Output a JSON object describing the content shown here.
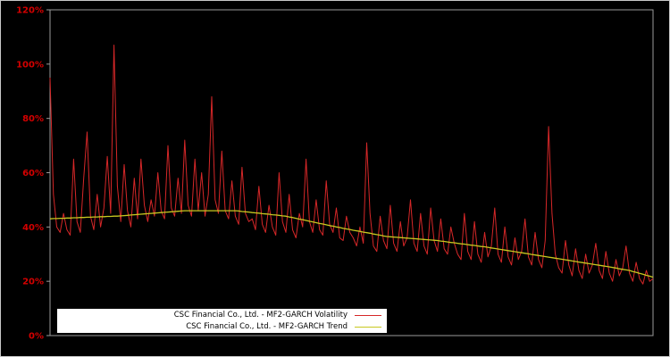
{
  "figure": {
    "background": "#000000",
    "plot_border_color": "#9a9a9a"
  },
  "y_axis": {
    "tick_labels": [
      "0%",
      "20%",
      "40%",
      "60%",
      "80%",
      "100%",
      "120%"
    ],
    "tick_values": [
      0,
      20,
      40,
      60,
      80,
      100,
      120
    ],
    "label_color": "#d40000"
  },
  "legend": {
    "background": "#ffffff",
    "entries": [
      {
        "label": "CSC Financial Co., Ltd. - MF2-GARCH Volatility",
        "color": "#d62728"
      },
      {
        "label": "CSC Financial Co., Ltd. - MF2-GARCH Trend",
        "color": "#c8c820"
      }
    ]
  },
  "chart_data": {
    "type": "line",
    "title": "",
    "xlabel": "",
    "ylabel": "",
    "ylim": [
      0,
      120
    ],
    "y_tick_labels": [
      "0%",
      "20%",
      "40%",
      "60%",
      "80%",
      "100%",
      "120%"
    ],
    "x_axis_labels_visible": false,
    "grid": false,
    "legend_position": "bottom-left",
    "series": [
      {
        "name": "CSC Financial Co., Ltd. - MF2-GARCH Volatility",
        "color": "#d62728",
        "stroke_width": 1,
        "data_name": "volatility-line",
        "values": [
          95,
          52,
          40,
          38,
          45,
          39,
          37,
          65,
          42,
          38,
          58,
          75,
          44,
          39,
          52,
          40,
          47,
          66,
          45,
          107,
          55,
          42,
          63,
          46,
          40,
          58,
          43,
          65,
          48,
          42,
          50,
          44,
          60,
          46,
          43,
          70,
          47,
          44,
          58,
          45,
          72,
          48,
          44,
          65,
          46,
          60,
          44,
          52,
          88,
          50,
          45,
          68,
          46,
          43,
          57,
          44,
          41,
          62,
          45,
          42,
          43,
          39,
          55,
          41,
          38,
          48,
          40,
          37,
          60,
          42,
          38,
          52,
          39,
          36,
          45,
          40,
          65,
          42,
          38,
          50,
          39,
          37,
          57,
          41,
          38,
          47,
          36,
          35,
          44,
          38,
          36,
          33,
          40,
          34,
          71,
          45,
          33,
          31,
          44,
          35,
          32,
          48,
          34,
          31,
          42,
          33,
          36,
          50,
          34,
          31,
          45,
          33,
          30,
          47,
          35,
          31,
          43,
          32,
          30,
          40,
          34,
          30,
          28,
          45,
          31,
          28,
          42,
          30,
          27,
          38,
          29,
          33,
          47,
          30,
          27,
          40,
          29,
          26,
          36,
          28,
          31,
          43,
          29,
          26,
          38,
          28,
          25,
          35,
          77,
          45,
          30,
          25,
          23,
          35,
          26,
          22,
          32,
          24,
          21,
          30,
          23,
          26,
          34,
          24,
          21,
          31,
          23,
          20,
          28,
          22,
          25,
          33,
          23,
          20,
          27,
          21,
          19,
          24,
          20,
          21
        ]
      },
      {
        "name": "CSC Financial Co., Ltd. - MF2-GARCH Trend",
        "color": "#c8c820",
        "stroke_width": 1.3,
        "data_name": "trend-line",
        "values": [
          43.0,
          43.1,
          43.1,
          43.2,
          43.2,
          43.3,
          43.3,
          43.4,
          43.4,
          43.5,
          43.5,
          43.6,
          43.6,
          43.7,
          43.7,
          43.8,
          43.8,
          43.9,
          43.9,
          44.0,
          44.0,
          44.1,
          44.2,
          44.3,
          44.4,
          44.5,
          44.6,
          44.7,
          44.8,
          44.9,
          45.0,
          45.1,
          45.2,
          45.3,
          45.4,
          45.5,
          45.6,
          45.7,
          45.8,
          45.9,
          46.0,
          46.0,
          46.0,
          46.0,
          46.0,
          46.0,
          46.0,
          46.0,
          46.0,
          46.0,
          46.0,
          46.0,
          46.0,
          46.0,
          46.0,
          46.0,
          45.9,
          45.7,
          45.6,
          45.5,
          45.3,
          45.2,
          45.1,
          44.9,
          44.8,
          44.7,
          44.5,
          44.4,
          44.3,
          44.1,
          44.0,
          43.7,
          43.5,
          43.2,
          42.9,
          42.7,
          42.4,
          42.1,
          41.9,
          41.6,
          41.3,
          41.1,
          40.8,
          40.5,
          40.3,
          40.0,
          39.8,
          39.5,
          39.3,
          39.1,
          38.8,
          38.6,
          38.4,
          38.1,
          37.9,
          37.7,
          37.4,
          37.2,
          37.0,
          36.7,
          36.5,
          36.4,
          36.3,
          36.2,
          36.1,
          36.0,
          35.9,
          35.8,
          35.7,
          35.6,
          35.5,
          35.4,
          35.3,
          35.2,
          35.1,
          35.0,
          34.8,
          34.7,
          34.5,
          34.3,
          34.2,
          34.0,
          33.8,
          33.7,
          33.5,
          33.3,
          33.2,
          33.0,
          32.8,
          32.7,
          32.5,
          32.3,
          32.1,
          31.9,
          31.7,
          31.5,
          31.3,
          31.1,
          30.9,
          30.7,
          30.5,
          30.3,
          30.1,
          29.9,
          29.7,
          29.5,
          29.3,
          29.1,
          28.9,
          28.7,
          28.5,
          28.3,
          28.1,
          27.9,
          27.7,
          27.5,
          27.3,
          27.1,
          26.9,
          26.7,
          26.5,
          26.3,
          26.1,
          25.9,
          25.7,
          25.5,
          25.3,
          25.1,
          24.9,
          24.6,
          24.4,
          24.2,
          24.0,
          23.6,
          23.3,
          22.9,
          22.6,
          22.2,
          21.9,
          21.5
        ]
      }
    ]
  }
}
